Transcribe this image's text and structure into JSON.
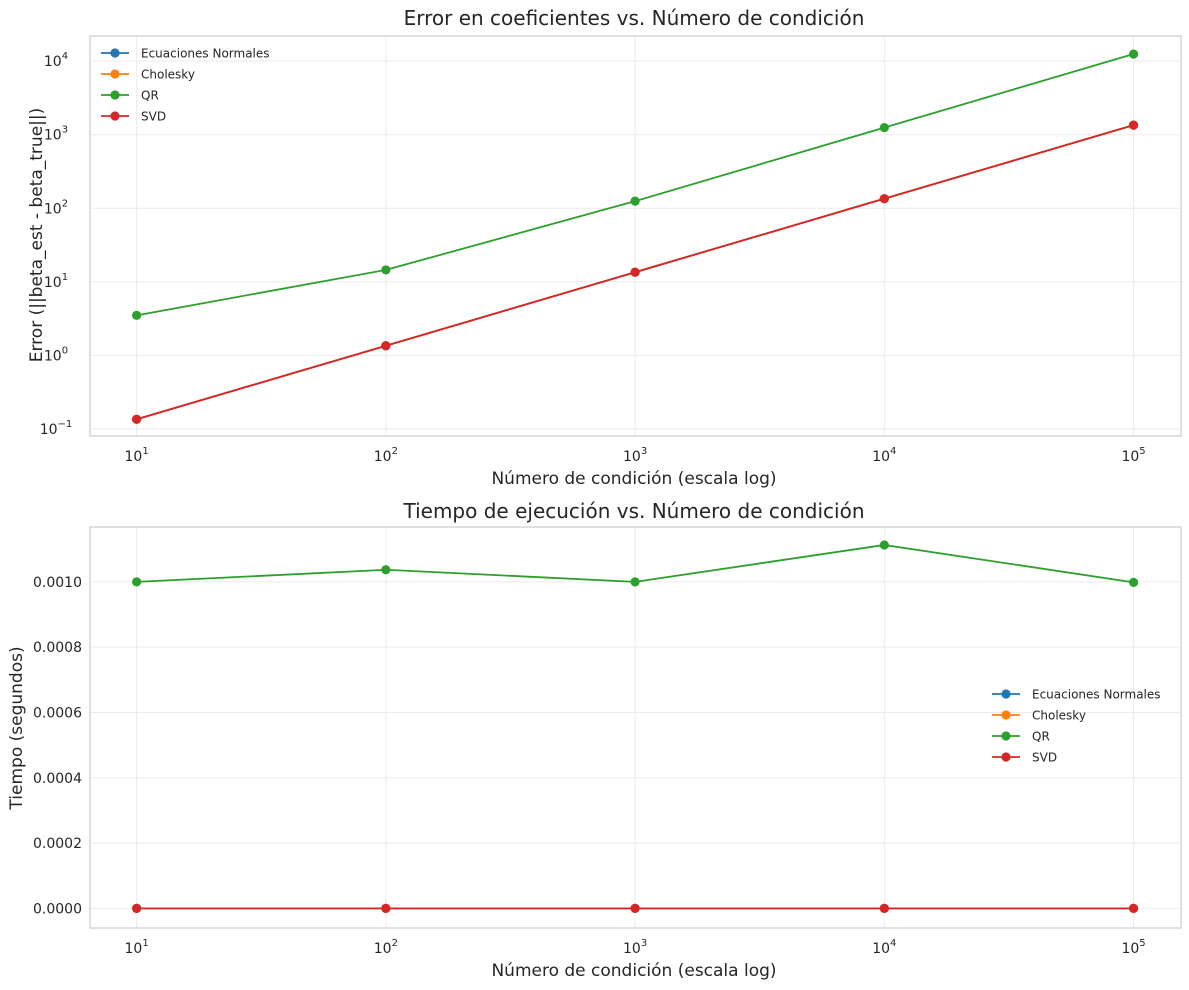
{
  "chart_data": [
    {
      "type": "line",
      "title": "Error en coeficientes vs. Número de condición",
      "xlabel": "Número de condición (escala log)",
      "ylabel": "Error (||beta_est - beta_true||)",
      "xscale": "log",
      "yscale": "log",
      "x": [
        10,
        100,
        1000,
        10000,
        100000
      ],
      "xticks": [
        {
          "base": "10",
          "exp": "1"
        },
        {
          "base": "10",
          "exp": "2"
        },
        {
          "base": "10",
          "exp": "3"
        },
        {
          "base": "10",
          "exp": "4"
        },
        {
          "base": "10",
          "exp": "5"
        }
      ],
      "yticks": [
        {
          "base": "10",
          "exp": "−1"
        },
        {
          "base": "10",
          "exp": "0"
        },
        {
          "base": "10",
          "exp": "1"
        },
        {
          "base": "10",
          "exp": "2"
        },
        {
          "base": "10",
          "exp": "3"
        },
        {
          "base": "10",
          "exp": "4"
        }
      ],
      "xlim": [
        6.5,
        155000
      ],
      "ylim": [
        0.08,
        22000
      ],
      "grid": true,
      "legend_position": "upper-left",
      "series": [
        {
          "name": "Ecuaciones Normales",
          "color": "#1f77b4",
          "values": [
            0.135,
            1.35,
            13.5,
            135,
            1350
          ]
        },
        {
          "name": "Cholesky",
          "color": "#ff7f0e",
          "values": [
            0.135,
            1.35,
            13.5,
            135,
            1350
          ]
        },
        {
          "name": "QR",
          "color": "#2ca02c",
          "values": [
            3.5,
            14.5,
            125,
            1250,
            12500
          ]
        },
        {
          "name": "SVD",
          "color": "#d62728",
          "values": [
            0.135,
            1.35,
            13.5,
            135,
            1350
          ]
        }
      ]
    },
    {
      "type": "line",
      "title": "Tiempo de ejecución vs. Número de condición",
      "xlabel": "Número de condición (escala log)",
      "ylabel": "Tiempo (segundos)",
      "xscale": "log",
      "yscale": "linear",
      "x": [
        10,
        100,
        1000,
        10000,
        100000
      ],
      "xticks": [
        {
          "base": "10",
          "exp": "1"
        },
        {
          "base": "10",
          "exp": "2"
        },
        {
          "base": "10",
          "exp": "3"
        },
        {
          "base": "10",
          "exp": "4"
        },
        {
          "base": "10",
          "exp": "5"
        }
      ],
      "yticks": [
        "0.0000",
        "0.0002",
        "0.0004",
        "0.0006",
        "0.0008",
        "0.0010"
      ],
      "yticks_values": [
        0,
        0.0002,
        0.0004,
        0.0006,
        0.0008,
        0.001
      ],
      "xlim": [
        6.5,
        155000
      ],
      "ylim": [
        -6e-05,
        0.001168
      ],
      "grid": true,
      "legend_position": "center-right",
      "series": [
        {
          "name": "Ecuaciones Normales",
          "color": "#1f77b4",
          "values": [
            0,
            0,
            0,
            0,
            0
          ]
        },
        {
          "name": "Cholesky",
          "color": "#ff7f0e",
          "values": [
            0,
            0,
            0,
            0,
            0
          ]
        },
        {
          "name": "QR",
          "color": "#2ca02c",
          "values": [
            0.001,
            0.001037,
            0.001,
            0.001113,
            0.0009985
          ]
        },
        {
          "name": "SVD",
          "color": "#d62728",
          "values": [
            0,
            0,
            0,
            0,
            0
          ]
        }
      ]
    }
  ]
}
